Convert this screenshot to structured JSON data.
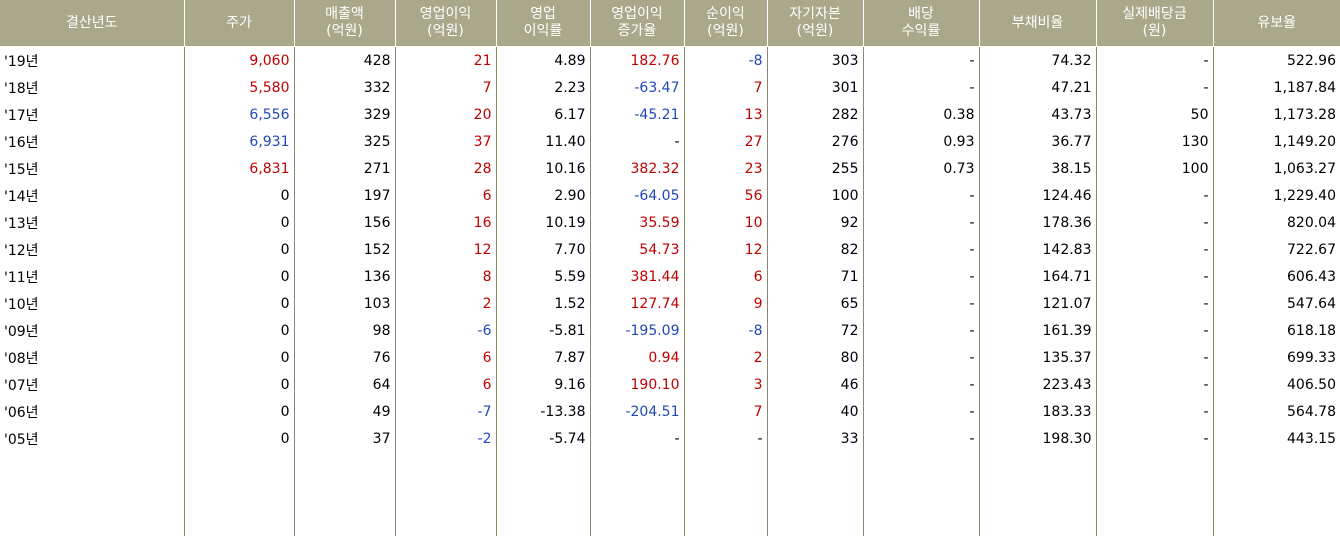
{
  "headers": [
    "결산년도",
    "주가",
    "매출액\n(억원)",
    "영업이익\n(억원)",
    "영업\n이익률",
    "영업이익\n증가율",
    "순이익\n(억원)",
    "자기자본\n(억원)",
    "배당\n수익률",
    "부채비율",
    "실제배당금\n(원)",
    "유보율"
  ],
  "rows": [
    [
      "'19년",
      "9,060",
      "428",
      "21",
      "4.89",
      "182.76",
      "-8",
      "303",
      "-",
      "74.32",
      "-",
      "522.96"
    ],
    [
      "'18년",
      "5,580",
      "332",
      "7",
      "2.23",
      "-63.47",
      "7",
      "301",
      "-",
      "47.21",
      "-",
      "1,187.84"
    ],
    [
      "'17년",
      "6,556",
      "329",
      "20",
      "6.17",
      "-45.21",
      "13",
      "282",
      "0.38",
      "43.73",
      "50",
      "1,173.28"
    ],
    [
      "'16년",
      "6,931",
      "325",
      "37",
      "11.40",
      "-",
      "27",
      "276",
      "0.93",
      "36.77",
      "130",
      "1,149.20"
    ],
    [
      "'15년",
      "6,831",
      "271",
      "28",
      "10.16",
      "382.32",
      "23",
      "255",
      "0.73",
      "38.15",
      "100",
      "1,063.27"
    ],
    [
      "'14년",
      "0",
      "197",
      "6",
      "2.90",
      "-64.05",
      "56",
      "100",
      "-",
      "124.46",
      "-",
      "1,229.40"
    ],
    [
      "'13년",
      "0",
      "156",
      "16",
      "10.19",
      "35.59",
      "10",
      "92",
      "-",
      "178.36",
      "-",
      "820.04"
    ],
    [
      "'12년",
      "0",
      "152",
      "12",
      "7.70",
      "54.73",
      "12",
      "82",
      "-",
      "142.83",
      "-",
      "722.67"
    ],
    [
      "'11년",
      "0",
      "136",
      "8",
      "5.59",
      "381.44",
      "6",
      "71",
      "-",
      "164.71",
      "-",
      "606.43"
    ],
    [
      "'10년",
      "0",
      "103",
      "2",
      "1.52",
      "127.74",
      "9",
      "65",
      "-",
      "121.07",
      "-",
      "547.64"
    ],
    [
      "'09년",
      "0",
      "98",
      "-6",
      "-5.81",
      "-195.09",
      "-8",
      "72",
      "-",
      "161.39",
      "-",
      "618.18"
    ],
    [
      "'08년",
      "0",
      "76",
      "6",
      "7.87",
      "0.94",
      "2",
      "80",
      "-",
      "135.37",
      "-",
      "699.33"
    ],
    [
      "'07년",
      "0",
      "64",
      "6",
      "9.16",
      "190.10",
      "3",
      "46",
      "-",
      "223.43",
      "-",
      "406.50"
    ],
    [
      "'06년",
      "0",
      "49",
      "-7",
      "-13.38",
      "-204.51",
      "7",
      "40",
      "-",
      "183.33",
      "-",
      "564.78"
    ],
    [
      "'05년",
      "0",
      "37",
      "-2",
      "-5.74",
      "-",
      "-",
      "33",
      "-",
      "198.30",
      "-",
      "443.15"
    ]
  ],
  "price_colors": [
    "red",
    "red",
    "blue",
    "blue",
    "red",
    "",
    "",
    "",
    "",
    "",
    "",
    "",
    "",
    "",
    ""
  ],
  "colors": {
    "header_bg": "#aaa88a",
    "header_text": "#ffffff",
    "up": "#c00000",
    "down": "#1f49b8",
    "rule": "#8a876b"
  }
}
